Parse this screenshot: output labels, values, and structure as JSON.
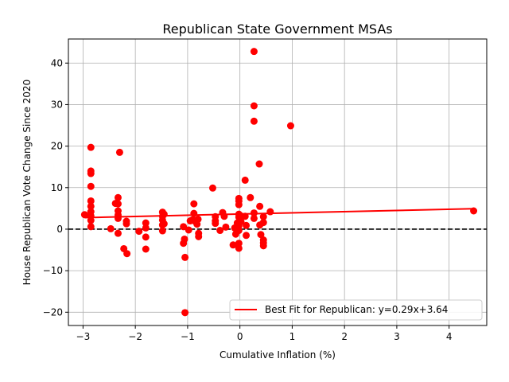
{
  "chart_data": {
    "type": "scatter",
    "title": "Republican State Government MSAs",
    "xlabel": "Cumulative Inflation (%)",
    "ylabel": "House Republican Vote Change Since 2020",
    "xlim": [
      -3.28,
      4.72
    ],
    "ylim": [
      -23.2,
      45.8
    ],
    "xticks": [
      -3,
      -2,
      -1,
      0,
      1,
      2,
      3,
      4
    ],
    "yticks": [
      -20,
      -10,
      0,
      10,
      20,
      30,
      40
    ],
    "xtick_labels": [
      "−3",
      "−2",
      "−1",
      "0",
      "1",
      "2",
      "3",
      "4"
    ],
    "ytick_labels": [
      "−20",
      "−10",
      "0",
      "10",
      "20",
      "30",
      "40"
    ],
    "grid": true,
    "zero_line": {
      "y": 0,
      "style": "dashed",
      "color": "#000000"
    },
    "marker_color": "#ff0000",
    "fit_line": {
      "label": "Best Fit for Republican: y=0.29x+3.64",
      "slope": 0.29,
      "intercept": 3.64,
      "x_range": [
        -2.97,
        4.47
      ],
      "color": "#ff0000"
    },
    "legend": {
      "position": "lower-right"
    },
    "points": [
      [
        -2.97,
        3.5
      ],
      [
        -2.85,
        19.7
      ],
      [
        -2.85,
        14.0
      ],
      [
        -2.85,
        13.4
      ],
      [
        -2.85,
        10.3
      ],
      [
        -2.85,
        6.8
      ],
      [
        -2.85,
        5.5
      ],
      [
        -2.85,
        4.2
      ],
      [
        -2.85,
        3.2
      ],
      [
        -2.85,
        2.1
      ],
      [
        -2.85,
        0.6
      ],
      [
        -2.47,
        0.1
      ],
      [
        -2.38,
        6.2
      ],
      [
        -2.33,
        7.6
      ],
      [
        -2.33,
        6.1
      ],
      [
        -2.33,
        4.4
      ],
      [
        -2.33,
        3.4
      ],
      [
        -2.33,
        2.6
      ],
      [
        -2.33,
        -1.0
      ],
      [
        -2.3,
        18.5
      ],
      [
        -2.22,
        -4.7
      ],
      [
        -2.17,
        1.9
      ],
      [
        -2.17,
        1.3
      ],
      [
        -2.16,
        -5.9
      ],
      [
        -1.93,
        -0.5
      ],
      [
        -1.8,
        1.5
      ],
      [
        -1.8,
        0.3
      ],
      [
        -1.8,
        -1.9
      ],
      [
        -1.8,
        -4.8
      ],
      [
        -1.48,
        4.1
      ],
      [
        -1.48,
        3.1
      ],
      [
        -1.48,
        2.2
      ],
      [
        -1.48,
        1.0
      ],
      [
        -1.48,
        -0.4
      ],
      [
        -1.45,
        3.6
      ],
      [
        -1.45,
        1.3
      ],
      [
        -1.08,
        0.6
      ],
      [
        -1.08,
        -3.4
      ],
      [
        -1.06,
        -2.4
      ],
      [
        -1.05,
        -6.8
      ],
      [
        -1.05,
        -20.1
      ],
      [
        -0.98,
        -0.2
      ],
      [
        -0.95,
        2.0
      ],
      [
        -0.9,
        2.3
      ],
      [
        -0.88,
        6.1
      ],
      [
        -0.88,
        3.8
      ],
      [
        -0.85,
        1.8
      ],
      [
        -0.82,
        1.2
      ],
      [
        -0.8,
        2.4
      ],
      [
        -0.79,
        -1.0
      ],
      [
        -0.79,
        -1.8
      ],
      [
        -0.52,
        9.9
      ],
      [
        -0.47,
        3.0
      ],
      [
        -0.47,
        2.0
      ],
      [
        -0.47,
        1.4
      ],
      [
        -0.38,
        -0.3
      ],
      [
        -0.33,
        4.0
      ],
      [
        -0.3,
        3.1
      ],
      [
        -0.27,
        0.5
      ],
      [
        -0.13,
        -3.8
      ],
      [
        -0.1,
        0.3
      ],
      [
        -0.08,
        -1.2
      ],
      [
        -0.05,
        1.5
      ],
      [
        -0.02,
        7.4
      ],
      [
        -0.02,
        6.8
      ],
      [
        -0.02,
        5.9
      ],
      [
        -0.02,
        3.6
      ],
      [
        -0.02,
        2.9
      ],
      [
        -0.02,
        0.8
      ],
      [
        -0.02,
        -0.3
      ],
      [
        -0.02,
        -3.4
      ],
      [
        -0.02,
        -4.6
      ],
      [
        0.02,
        3.2
      ],
      [
        0.02,
        1.8
      ],
      [
        0.1,
        11.8
      ],
      [
        0.1,
        3.1
      ],
      [
        0.12,
        0.9
      ],
      [
        0.12,
        -1.5
      ],
      [
        0.2,
        7.6
      ],
      [
        0.27,
        42.8
      ],
      [
        0.27,
        29.7
      ],
      [
        0.27,
        26.0
      ],
      [
        0.27,
        3.9
      ],
      [
        0.27,
        2.6
      ],
      [
        0.37,
        15.7
      ],
      [
        0.38,
        5.5
      ],
      [
        0.38,
        1.0
      ],
      [
        0.4,
        -1.3
      ],
      [
        0.45,
        3.0
      ],
      [
        0.45,
        1.6
      ],
      [
        0.45,
        -2.6
      ],
      [
        0.45,
        -3.3
      ],
      [
        0.45,
        -4.0
      ],
      [
        0.58,
        4.2
      ],
      [
        0.97,
        24.9
      ],
      [
        4.47,
        4.4
      ]
    ]
  }
}
